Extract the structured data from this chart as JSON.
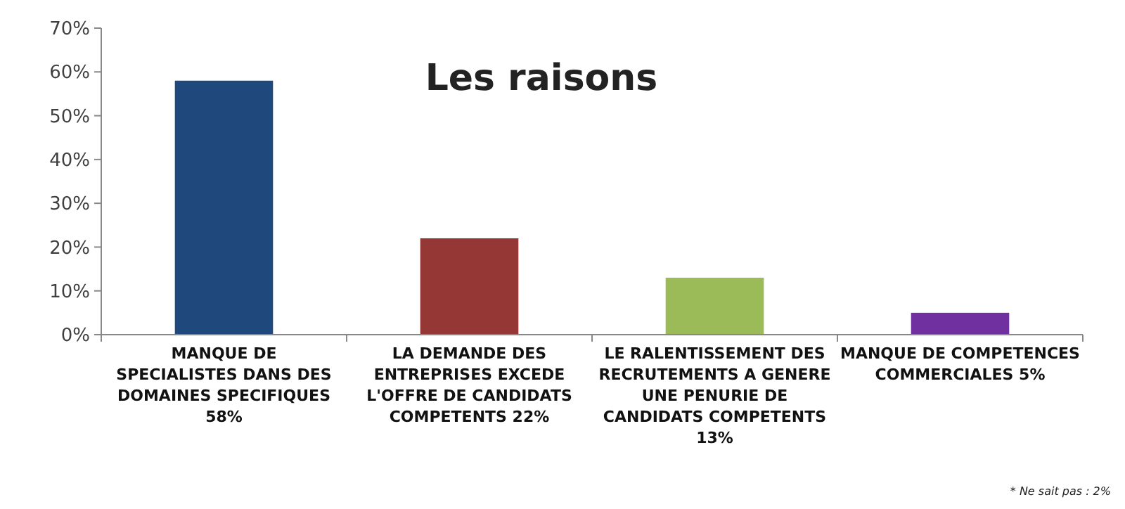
{
  "chart_data": {
    "type": "bar",
    "title": "Les raisons",
    "categories": [
      "MANQUE DE SPECIALISTES DANS DES DOMAINES SPECIFIQUES 58%",
      "LA DEMANDE DES ENTREPRISES EXCEDE L'OFFRE DE CANDIDATS COMPETENTS 22%",
      "LE RALENTISSEMENT DES RECRUTEMENTS A GENERE UNE PENURIE DE CANDIDATS COMPETENTS 13%",
      "MANQUE DE COMPETENCES COMMERCIALES 5%"
    ],
    "values": [
      58,
      22,
      13,
      5
    ],
    "colors": [
      "#1f497d",
      "#953735",
      "#9bbb59",
      "#7030a0"
    ],
    "ylim": [
      0,
      70
    ],
    "yticks": [
      {
        "value": 0,
        "label": "0%"
      },
      {
        "value": 10,
        "label": "10%"
      },
      {
        "value": 20,
        "label": "20%"
      },
      {
        "value": 30,
        "label": "30%"
      },
      {
        "value": 40,
        "label": "40%"
      },
      {
        "value": 50,
        "label": "50%"
      },
      {
        "value": 60,
        "label": "60%"
      },
      {
        "value": 70,
        "label": "70%"
      }
    ],
    "grid": false,
    "annotations": [
      "* Ne sait pas : 2%"
    ]
  }
}
